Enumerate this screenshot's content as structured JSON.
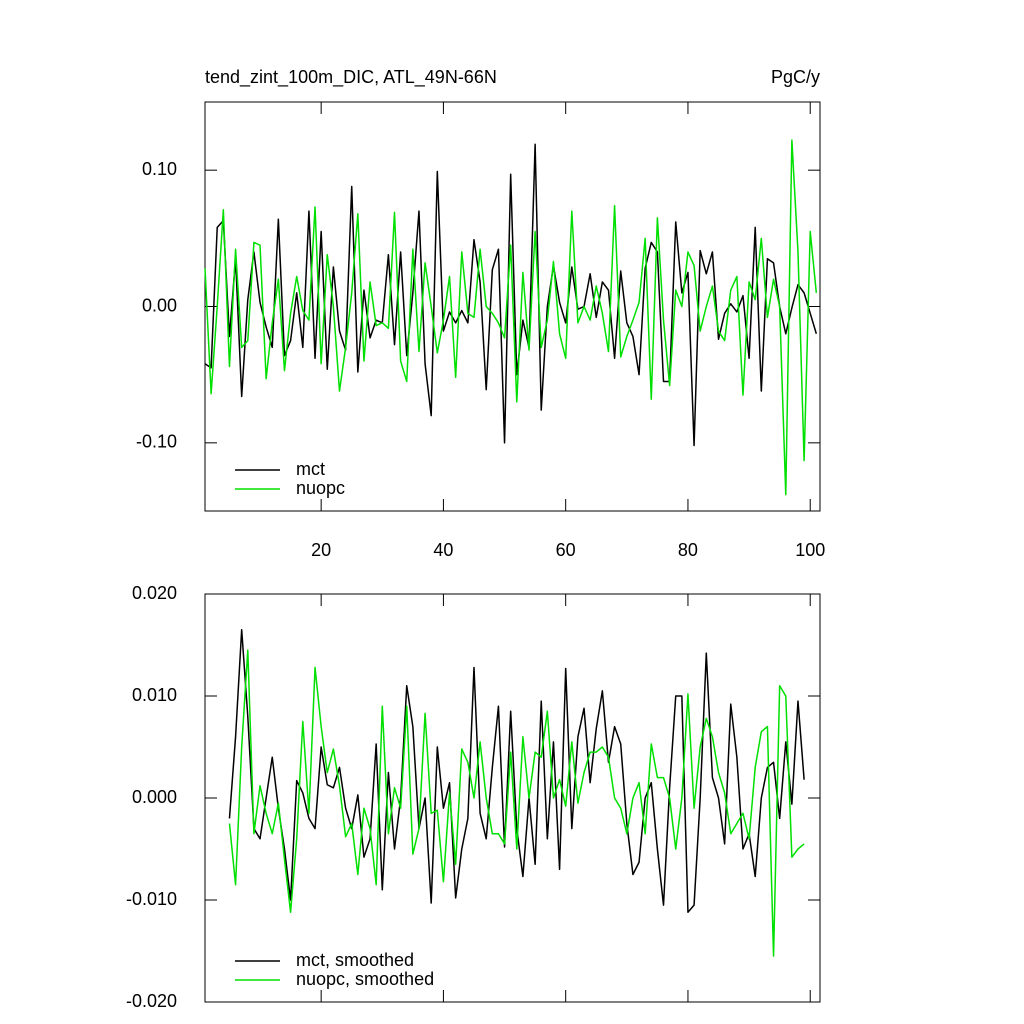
{
  "chart_data": [
    {
      "type": "line",
      "title": "tend_zint_100m_DIC, ATL_49N-66N",
      "units": "PgC/y",
      "x": [
        1,
        2,
        3,
        4,
        5,
        6,
        7,
        8,
        9,
        10,
        11,
        12,
        13,
        14,
        15,
        16,
        17,
        18,
        19,
        20,
        21,
        22,
        23,
        24,
        25,
        26,
        27,
        28,
        29,
        30,
        31,
        32,
        33,
        34,
        35,
        36,
        37,
        38,
        39,
        40,
        41,
        42,
        43,
        44,
        45,
        46,
        47,
        48,
        49,
        50,
        51,
        52,
        53,
        54,
        55,
        56,
        57,
        58,
        59,
        60,
        61,
        62,
        63,
        64,
        65,
        66,
        67,
        68,
        69,
        70,
        71,
        72,
        73,
        74,
        75,
        76,
        77,
        78,
        79,
        80,
        81,
        82,
        83,
        84,
        85,
        86,
        87,
        88,
        89,
        90,
        91,
        92,
        93,
        94,
        95,
        96,
        97,
        98,
        99,
        100,
        101
      ],
      "xlim": [
        1,
        101.6
      ],
      "xticks": [
        20,
        40,
        60,
        80,
        100
      ],
      "show_xtick_labels": true,
      "ylim": [
        -0.15,
        0.15
      ],
      "yticks": [
        {
          "value": -0.1,
          "label": "-0.10"
        },
        {
          "value": 0,
          "label": "0.00"
        },
        {
          "value": 0.1,
          "label": "0.10"
        }
      ],
      "legend": "lower left",
      "series": [
        {
          "name": "mct",
          "color": "#000000",
          "values": [
            -0.042,
            -0.045,
            0.058,
            0.063,
            -0.022,
            0.035,
            -0.066,
            0.005,
            0.04,
            0.003,
            -0.015,
            -0.03,
            0.064,
            -0.036,
            -0.025,
            0.01,
            -0.03,
            0.07,
            -0.038,
            0.055,
            -0.046,
            0.029,
            -0.018,
            -0.032,
            0.088,
            -0.048,
            0.012,
            -0.023,
            -0.01,
            -0.012,
            0.038,
            -0.028,
            0.04,
            -0.036,
            0.01,
            0.07,
            -0.042,
            -0.08,
            0.099,
            -0.018,
            -0.004,
            -0.012,
            -0.003,
            -0.012,
            0.049,
            0.018,
            -0.061,
            0.027,
            0.042,
            -0.1,
            0.097,
            -0.05,
            -0.01,
            -0.03,
            0.119,
            -0.076,
            0.0,
            0.03,
            0.003,
            -0.012,
            0.029,
            -0.002,
            0.0,
            0.024,
            -0.008,
            0.018,
            0.012,
            -0.038,
            0.026,
            -0.012,
            -0.022,
            -0.05,
            0.028,
            0.047,
            0.04,
            -0.055,
            -0.055,
            0.062,
            0.01,
            0.025,
            -0.102,
            0.041,
            0.024,
            0.04,
            -0.024,
            -0.005,
            0.002,
            -0.004,
            0.008,
            -0.038,
            0.058,
            -0.062,
            0.035,
            0.032,
            0.0,
            -0.02,
            -0.001,
            0.016,
            0.01,
            -0.005,
            -0.02
          ]
        },
        {
          "name": "nuopc",
          "color": "#00e000",
          "values": [
            0.028,
            -0.064,
            0.0,
            0.071,
            -0.044,
            0.042,
            -0.03,
            -0.025,
            0.047,
            0.045,
            -0.053,
            -0.012,
            0.02,
            -0.047,
            -0.005,
            0.022,
            -0.003,
            -0.01,
            0.073,
            -0.042,
            0.038,
            0.0,
            -0.062,
            -0.03,
            0.01,
            0.068,
            -0.04,
            0.018,
            -0.014,
            -0.012,
            -0.016,
            0.069,
            -0.04,
            -0.055,
            0.042,
            -0.033,
            0.032,
            0.0,
            -0.034,
            -0.01,
            0.022,
            -0.052,
            0.04,
            -0.005,
            -0.008,
            0.042,
            0.0,
            -0.005,
            -0.012,
            -0.023,
            0.045,
            -0.07,
            0.025,
            -0.032,
            0.055,
            -0.03,
            -0.01,
            0.033,
            -0.02,
            -0.038,
            0.07,
            -0.012,
            0.0,
            -0.01,
            0.015,
            -0.005,
            -0.033,
            0.074,
            -0.037,
            -0.022,
            -0.01,
            0.003,
            0.05,
            -0.068,
            0.065,
            -0.01,
            -0.058,
            0.012,
            0.0,
            0.04,
            0.03,
            -0.018,
            0.0,
            0.015,
            -0.018,
            -0.025,
            0.012,
            0.022,
            -0.065,
            0.018,
            0.005,
            0.05,
            -0.008,
            0.02,
            0.0,
            -0.138,
            0.122,
            0.04,
            -0.113,
            0.055,
            0.01
          ]
        }
      ]
    },
    {
      "type": "line",
      "x": [
        5,
        6,
        7,
        8,
        9,
        10,
        11,
        12,
        13,
        14,
        15,
        16,
        17,
        18,
        19,
        20,
        21,
        22,
        23,
        24,
        25,
        26,
        27,
        28,
        29,
        30,
        31,
        32,
        33,
        34,
        35,
        36,
        37,
        38,
        39,
        40,
        41,
        42,
        43,
        44,
        45,
        46,
        47,
        48,
        49,
        50,
        51,
        52,
        53,
        54,
        55,
        56,
        57,
        58,
        59,
        60,
        61,
        62,
        63,
        64,
        65,
        66,
        67,
        68,
        69,
        70,
        71,
        72,
        73,
        74,
        75,
        76,
        77,
        78,
        79,
        80,
        81,
        82,
        83,
        84,
        85,
        86,
        87,
        88,
        89,
        90,
        91,
        92,
        93,
        94,
        95,
        96,
        97,
        98,
        99
      ],
      "xlim": [
        1,
        101.6
      ],
      "xticks": [
        20,
        40,
        60,
        80,
        100
      ],
      "show_xtick_labels": false,
      "ylim": [
        -0.02,
        0.02
      ],
      "yticks": [
        {
          "value": -0.02,
          "label": "-0.020"
        },
        {
          "value": -0.01,
          "label": "-0.010"
        },
        {
          "value": 0,
          "label": "0.000"
        },
        {
          "value": 0.01,
          "label": "0.010"
        },
        {
          "value": 0.02,
          "label": "0.020"
        }
      ],
      "legend": "lower left",
      "series": [
        {
          "name": "mct, smoothed",
          "color": "#000000",
          "values": [
            -0.002,
            0.006,
            0.0165,
            0.008,
            -0.003,
            -0.004,
            0.0,
            0.004,
            -0.001,
            -0.005,
            -0.01,
            0.0017,
            0.0005,
            -0.002,
            -0.003,
            0.005,
            0.0013,
            0.001,
            0.003,
            -0.001,
            -0.003,
            0.0003,
            -0.0058,
            -0.004,
            0.0053,
            -0.009,
            0.0025,
            -0.005,
            0.0,
            0.011,
            0.007,
            -0.003,
            0.0,
            -0.0103,
            0.005,
            -0.001,
            0.0015,
            -0.0098,
            -0.005,
            -0.002,
            0.0128,
            -0.0015,
            -0.004,
            0.003,
            0.009,
            -0.0048,
            0.0085,
            -0.003,
            -0.0077,
            0.0,
            -0.0065,
            0.0095,
            -0.004,
            0.0055,
            -0.007,
            0.0127,
            -0.003,
            0.006,
            0.0088,
            0.0015,
            0.0068,
            0.0105,
            0.0035,
            0.007,
            0.0053,
            -0.0025,
            -0.0075,
            -0.0063,
            0.0,
            0.0015,
            -0.005,
            -0.0105,
            0.001,
            0.01,
            0.01,
            -0.0112,
            -0.0105,
            0.0,
            0.0142,
            0.002,
            0.0,
            -0.0045,
            0.0092,
            0.004,
            -0.005,
            -0.0035,
            -0.0077,
            0.0,
            0.003,
            0.0035,
            -0.002,
            0.0055,
            -0.0006,
            0.0095,
            0.0018
          ]
        },
        {
          "name": "nuopc, smoothed",
          "color": "#00e000",
          "values": [
            -0.0025,
            -0.0085,
            0.005,
            0.0145,
            -0.0035,
            0.0012,
            -0.0015,
            -0.0035,
            -0.0005,
            -0.006,
            -0.0112,
            -0.004,
            0.0075,
            -0.0015,
            0.0128,
            0.007,
            0.0025,
            0.0048,
            0.0012,
            -0.0038,
            -0.0025,
            -0.0075,
            -0.001,
            -0.003,
            -0.0085,
            0.009,
            -0.0035,
            0.001,
            -0.001,
            0.009,
            -0.0055,
            -0.003,
            0.0083,
            -0.0015,
            -0.0012,
            -0.0082,
            0.0005,
            -0.0065,
            0.0048,
            0.0035,
            0.0,
            0.0055,
            0.0,
            -0.0035,
            -0.0035,
            -0.0045,
            0.0045,
            -0.005,
            0.006,
            0.0,
            0.0045,
            0.004,
            0.0085,
            0.0,
            0.0018,
            -0.0008,
            0.0055,
            -0.0005,
            0.0025,
            0.0045,
            0.0045,
            0.005,
            0.004,
            0.0,
            -0.001,
            -0.0035,
            0.0,
            0.0015,
            -0.0035,
            0.0053,
            0.002,
            0.002,
            0.0,
            -0.005,
            0.0,
            0.0102,
            -0.001,
            0.005,
            0.0078,
            0.006,
            0.0025,
            0.0005,
            -0.0035,
            -0.0025,
            -0.0015,
            -0.004,
            0.003,
            0.0065,
            0.007,
            -0.0155,
            0.011,
            0.01,
            -0.0058,
            -0.005,
            -0.0045
          ]
        }
      ]
    }
  ]
}
